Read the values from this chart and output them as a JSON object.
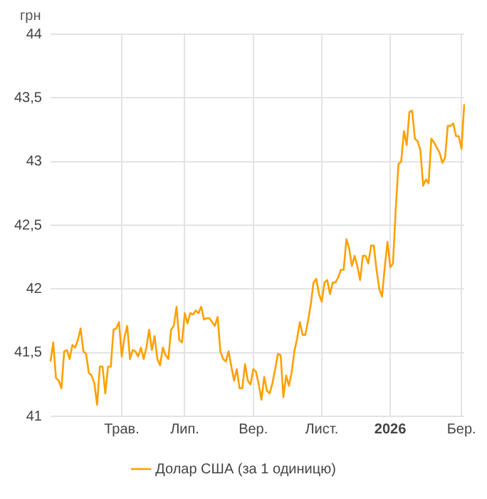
{
  "chart_data": {
    "type": "line",
    "ylabel": "грн",
    "categories": [
      null,
      null,
      null,
      null,
      null,
      null,
      null,
      null,
      null,
      null,
      null,
      null,
      null,
      null,
      null,
      null,
      null,
      null,
      null,
      null,
      null,
      null,
      null,
      null,
      null,
      null,
      "Трав.",
      null,
      null,
      null,
      null,
      null,
      null,
      null,
      null,
      null,
      null,
      null,
      null,
      null,
      null,
      null,
      null,
      null,
      null,
      null,
      null,
      null,
      null,
      "Лип.",
      null,
      null,
      null,
      null,
      null,
      null,
      null,
      null,
      null,
      null,
      null,
      null,
      null,
      null,
      null,
      null,
      null,
      null,
      null,
      null,
      null,
      null,
      null,
      null,
      "Вер.",
      null,
      null,
      null,
      null,
      null,
      null,
      null,
      null,
      null,
      null,
      null,
      null,
      null,
      null,
      null,
      null,
      null,
      null,
      null,
      null,
      null,
      null,
      null,
      null,
      "Лист.",
      null,
      null,
      null,
      null,
      null,
      null,
      null,
      null,
      null,
      null,
      null,
      null,
      null,
      null,
      null,
      null,
      null,
      null,
      null,
      null,
      null,
      null,
      null,
      null,
      "2026",
      null,
      null,
      null,
      null,
      null,
      null,
      null,
      null,
      null,
      null,
      null,
      null,
      null,
      null,
      null,
      null,
      null,
      null,
      null,
      null,
      null,
      null,
      null,
      null,
      null,
      "Бер.",
      null
    ],
    "ylim": [
      41,
      44
    ],
    "yticks": [
      41,
      {
        "value": 41.5,
        "label": "41,5"
      },
      42,
      {
        "value": 42.5,
        "label": "42,5"
      },
      43,
      {
        "value": 43.5,
        "label": "43,5"
      },
      44
    ],
    "grid": true,
    "legend": "bottom",
    "series": [
      {
        "name": "Долар США (за 1 одиницю)",
        "color": "#ffa000",
        "values": [
          41.43,
          41.58,
          41.3,
          41.28,
          41.22,
          41.51,
          41.52,
          41.45,
          41.56,
          41.54,
          41.6,
          41.69,
          41.51,
          41.49,
          41.34,
          41.32,
          41.26,
          41.09,
          41.39,
          41.39,
          41.18,
          41.39,
          41.39,
          41.68,
          41.69,
          41.74,
          41.47,
          41.62,
          41.71,
          41.45,
          41.52,
          41.51,
          41.47,
          41.54,
          41.45,
          41.54,
          41.68,
          41.52,
          41.63,
          41.45,
          41.4,
          41.54,
          41.48,
          41.45,
          41.68,
          41.71,
          41.86,
          41.6,
          41.58,
          41.81,
          41.73,
          41.81,
          41.8,
          41.83,
          41.81,
          41.86,
          41.76,
          41.77,
          41.77,
          41.74,
          41.71,
          41.78,
          41.51,
          41.45,
          41.43,
          41.51,
          41.39,
          41.28,
          41.37,
          41.22,
          41.22,
          41.41,
          41.28,
          41.25,
          41.37,
          41.35,
          41.25,
          41.13,
          41.31,
          41.2,
          41.18,
          41.26,
          41.37,
          41.49,
          41.48,
          41.15,
          41.32,
          41.24,
          41.34,
          41.51,
          41.61,
          41.74,
          41.64,
          41.64,
          41.75,
          41.88,
          42.05,
          42.08,
          41.96,
          41.9,
          42.05,
          42.07,
          41.96,
          42.05,
          42.05,
          42.09,
          42.15,
          42.15,
          42.39,
          42.32,
          42.18,
          42.26,
          42.18,
          42.07,
          42.26,
          42.26,
          42.2,
          42.34,
          42.34,
          42.15,
          42.0,
          41.94,
          42.17,
          42.37,
          42.17,
          42.2,
          42.62,
          42.98,
          43.0,
          43.24,
          43.13,
          43.39,
          43.4,
          43.18,
          43.16,
          43.09,
          42.81,
          42.86,
          42.83,
          43.18,
          43.15,
          43.11,
          43.07,
          42.99,
          43.03,
          43.28,
          43.28,
          43.3,
          43.2,
          43.2,
          43.1,
          43.45
        ]
      }
    ]
  }
}
